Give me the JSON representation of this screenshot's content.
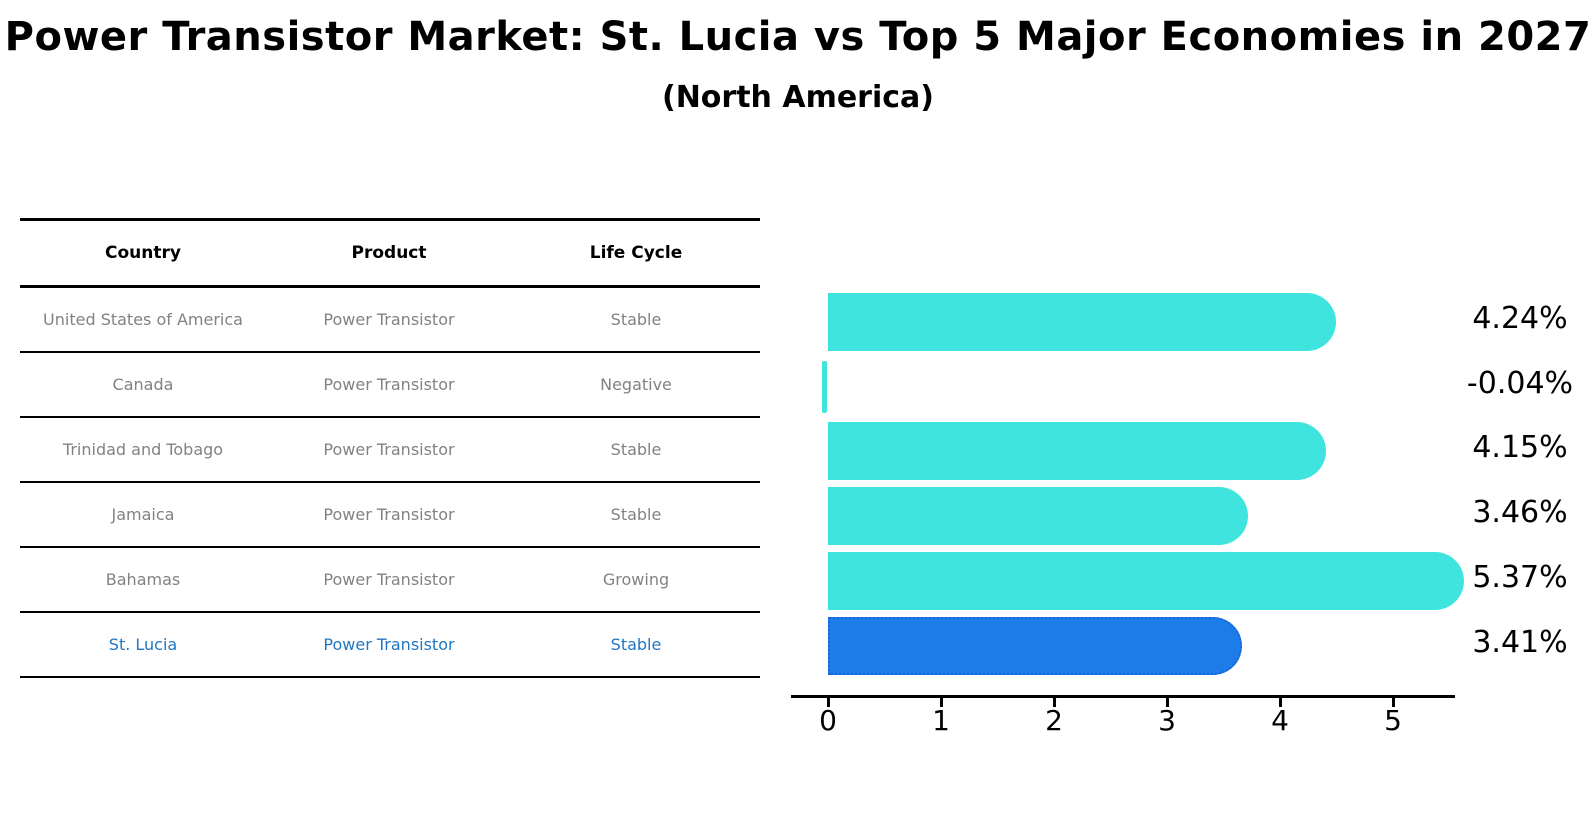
{
  "title": "Power Transistor Market: St. Lucia vs Top 5 Major Economies in 2027",
  "subtitle": "(North America)",
  "table": {
    "headers": {
      "country": "Country",
      "product": "Product",
      "life_cycle": "Life Cycle"
    },
    "rows": [
      {
        "country": "United States of America",
        "product": "Power Transistor",
        "life_cycle": "Stable"
      },
      {
        "country": "Canada",
        "product": "Power Transistor",
        "life_cycle": "Negative"
      },
      {
        "country": "Trinidad and Tobago",
        "product": "Power Transistor",
        "life_cycle": "Stable"
      },
      {
        "country": "Jamaica",
        "product": "Power Transistor",
        "life_cycle": "Stable"
      },
      {
        "country": "Bahamas",
        "product": "Power Transistor",
        "life_cycle": "Growing"
      },
      {
        "country": "St. Lucia",
        "product": "Power Transistor",
        "life_cycle": "Stable"
      }
    ]
  },
  "chart_data": {
    "type": "bar",
    "orientation": "horizontal",
    "categories": [
      "United States of America",
      "Canada",
      "Trinidad and Tobago",
      "Jamaica",
      "Bahamas",
      "St. Lucia"
    ],
    "values": [
      4.24,
      -0.04,
      4.15,
      3.46,
      5.37,
      3.41
    ],
    "value_labels": [
      "4.24%",
      "-0.04%",
      "4.15%",
      "3.46%",
      "5.37%",
      "3.41%"
    ],
    "x_ticks": [
      "0",
      "1",
      "2",
      "3",
      "4",
      "5"
    ],
    "xlim": [
      -0.33,
      5.55
    ],
    "grid": false,
    "legend": "none",
    "highlight_index": 5,
    "colors": {
      "bar_default": "#40e4de",
      "bar_highlight": "#1e7ce8",
      "bar_highlight_border": "#1565d8",
      "highlight_text": "#2177c4",
      "table_text": "#828282",
      "axis_text": "#000000"
    }
  }
}
